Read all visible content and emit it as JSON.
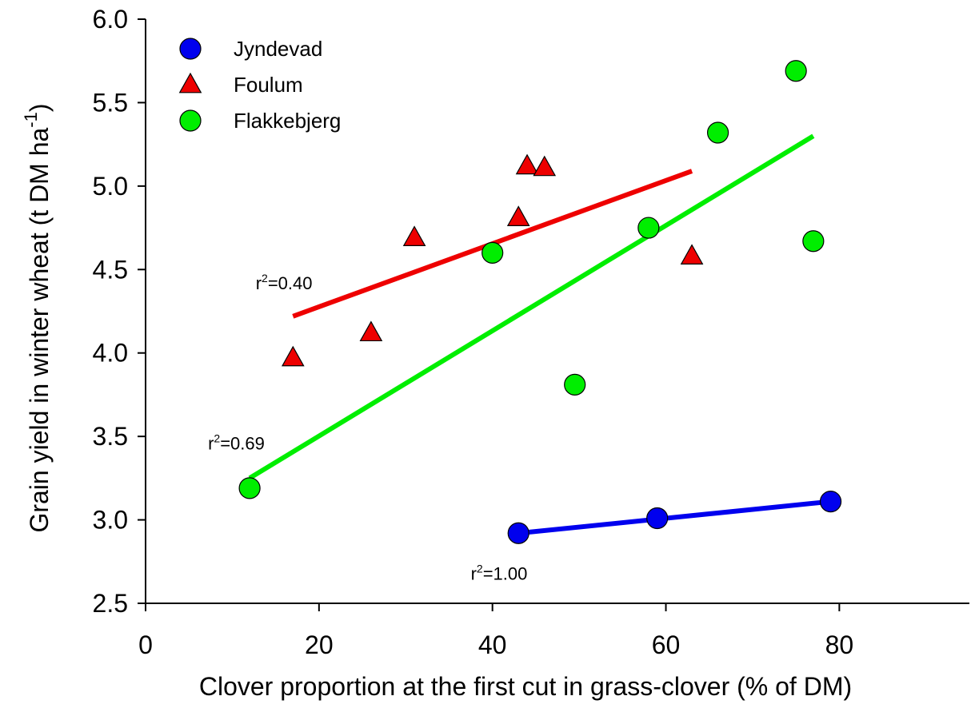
{
  "chart_data": {
    "type": "scatter",
    "xlabel": "Clover proportion at the first cut in grass-clover (% of DM)",
    "ylabel_main": "Grain yield in winter wheat (t DM ha",
    "ylabel_sup": "-1",
    "ylabel_close": ")",
    "xlim": [
      0,
      95
    ],
    "ylim": [
      2.5,
      6.0
    ],
    "xticks": [
      0,
      20,
      40,
      60,
      80
    ],
    "yticks": [
      2.5,
      3.0,
      3.5,
      4.0,
      4.5,
      5.0,
      5.5,
      6.0
    ],
    "xtick_labels": [
      "0",
      "20",
      "40",
      "60",
      "80"
    ],
    "ytick_labels": [
      "2.5",
      "3.0",
      "3.5",
      "4.0",
      "4.5",
      "5.0",
      "5.5",
      "6.0"
    ],
    "grid": false,
    "legend_position": "top-left",
    "series": [
      {
        "name": "Jyndevad",
        "marker": "circle",
        "color": "#0000ee",
        "points": [
          [
            43.0,
            2.92
          ],
          [
            59.0,
            3.01
          ],
          [
            79.0,
            3.11
          ]
        ],
        "fit": [
          [
            43.0,
            2.92
          ],
          [
            79.0,
            3.11
          ]
        ],
        "r2_prefix": "r",
        "r2_sup": "2",
        "r2_value": "=1.00",
        "r2_anchor": [
          37.5,
          2.68
        ]
      },
      {
        "name": "Foulum",
        "marker": "triangle",
        "color": "#ee0000",
        "points": [
          [
            17.0,
            3.97
          ],
          [
            26.0,
            4.12
          ],
          [
            31.0,
            4.69
          ],
          [
            43.0,
            4.81
          ],
          [
            44.0,
            5.12
          ],
          [
            46.0,
            5.11
          ],
          [
            63.0,
            4.58
          ]
        ],
        "fit": [
          [
            17.0,
            4.22
          ],
          [
            63.0,
            5.09
          ]
        ],
        "r2_prefix": "r",
        "r2_sup": "2",
        "r2_value": "=0.40",
        "r2_anchor": [
          12.7,
          4.42
        ]
      },
      {
        "name": "Flakkebjerg",
        "marker": "circle",
        "color": "#00ee00",
        "points": [
          [
            12.0,
            3.19
          ],
          [
            40.0,
            4.6
          ],
          [
            49.5,
            3.81
          ],
          [
            58.0,
            4.75
          ],
          [
            66.0,
            5.32
          ],
          [
            75.0,
            5.69
          ],
          [
            77.0,
            4.67
          ]
        ],
        "fit": [
          [
            12.0,
            3.25
          ],
          [
            77.0,
            5.3
          ]
        ],
        "r2_prefix": "r",
        "r2_sup": "2",
        "r2_value": "=0.69",
        "r2_anchor": [
          7.2,
          3.46
        ]
      }
    ]
  }
}
